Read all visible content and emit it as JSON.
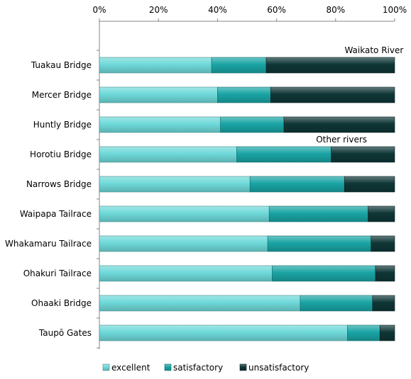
{
  "chart_data": {
    "type": "bar",
    "orientation": "horizontal",
    "stacked": "percent",
    "categories": [
      "Tuakau Bridge",
      "Mercer Bridge",
      "Huntly  Bridge",
      "Horotiu Bridge",
      "Narrows Bridge",
      "Waipapa Tailrace",
      "Whakamaru Tailrace",
      "Ohakuri Tailrace",
      "Ohaaki Bridge",
      "Taupō Gates"
    ],
    "series": [
      {
        "name": "excellent",
        "color": "#6fd9d9",
        "values": [
          38,
          40,
          41,
          46.5,
          51,
          57.5,
          57,
          58.5,
          68,
          84
        ]
      },
      {
        "name": "satisfactory",
        "color": "#1aa4a4",
        "values": [
          18.5,
          18,
          21.5,
          32,
          32,
          33.5,
          35,
          35,
          24.5,
          11
        ]
      },
      {
        "name": "unsatisfactory",
        "color": "#0f3636",
        "values": [
          43.5,
          42,
          37.5,
          21.5,
          17,
          9,
          8,
          6.5,
          7.5,
          5
        ]
      }
    ],
    "x_ticks": [
      "0%",
      "20%",
      "40%",
      "60%",
      "80%",
      "100%"
    ],
    "xlim": [
      0,
      100
    ],
    "x_axis_position": "top",
    "grid": false,
    "legend_position": "bottom",
    "annotations": [
      {
        "text": "Waikato River",
        "category": "Tuakau Bridge",
        "x": 93
      },
      {
        "text": "Other rivers",
        "category": "Horotiu Bridge",
        "x": 82
      }
    ]
  }
}
